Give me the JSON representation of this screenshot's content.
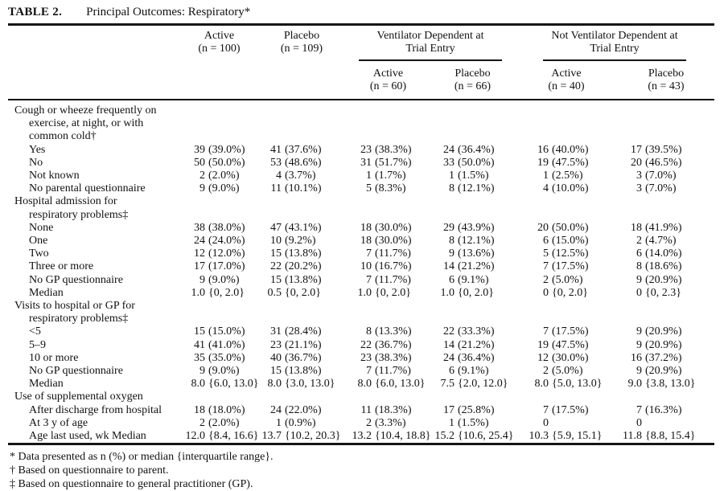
{
  "title": {
    "label": "TABLE 2.",
    "text": "Principal Outcomes: Respiratory*"
  },
  "header": {
    "main_columns": [
      {
        "name": "Active",
        "n": "(n = 100)"
      },
      {
        "name": "Placebo",
        "n": "(n = 109)"
      }
    ],
    "groups": [
      {
        "title_line1": "Ventilator Dependent at",
        "title_line2": "Trial Entry",
        "columns": [
          {
            "name": "Active",
            "n": "(n = 60)"
          },
          {
            "name": "Placebo",
            "n": "(n = 66)"
          }
        ]
      },
      {
        "title_line1": "Not Ventilator Dependent at",
        "title_line2": "Trial Entry",
        "columns": [
          {
            "name": "Active",
            "n": "(n = 40)"
          },
          {
            "name": "Placebo",
            "n": "(n = 43)"
          }
        ]
      }
    ]
  },
  "sections": [
    {
      "label_lines": [
        "Cough or wheeze frequently on",
        "exercise, at night, or with",
        "common cold†"
      ],
      "rows": [
        {
          "label": "Yes",
          "values": [
            "39 (39.0%)",
            "41 (37.6%)",
            "23 (38.3%)",
            "24 (36.4%)",
            "16 (40.0%)",
            "17 (39.5%)"
          ]
        },
        {
          "label": "No",
          "values": [
            "50 (50.0%)",
            "53 (48.6%)",
            "31 (51.7%)",
            "33 (50.0%)",
            "19 (47.5%)",
            "20 (46.5%)"
          ]
        },
        {
          "label": "Not known",
          "values": [
            "2 (2.0%)",
            "4 (3.7%)",
            "1 (1.7%)",
            "1 (1.5%)",
            "1 (2.5%)",
            "3 (7.0%)"
          ]
        },
        {
          "label": "No parental questionnaire",
          "values": [
            "9 (9.0%)",
            "11 (10.1%)",
            "5 (8.3%)",
            "8 (12.1%)",
            "4 (10.0%)",
            "3 (7.0%)"
          ]
        }
      ]
    },
    {
      "label_lines": [
        "Hospital admission for",
        "respiratory problems‡"
      ],
      "rows": [
        {
          "label": "None",
          "values": [
            "38 (38.0%)",
            "47 (43.1%)",
            "18 (30.0%)",
            "29 (43.9%)",
            "20 (50.0%)",
            "18 (41.9%)"
          ]
        },
        {
          "label": "One",
          "values": [
            "24 (24.0%)",
            "10 (9.2%)",
            "18 (30.0%)",
            "8 (12.1%)",
            "6 (15.0%)",
            "2 (4.7%)"
          ]
        },
        {
          "label": "Two",
          "values": [
            "12 (12.0%)",
            "15 (13.8%)",
            "7 (11.7%)",
            "9 (13.6%)",
            "5 (12.5%)",
            "6 (14.0%)"
          ]
        },
        {
          "label": "Three or more",
          "values": [
            "17 (17.0%)",
            "22 (20.2%)",
            "10 (16.7%)",
            "14 (21.2%)",
            "7 (17.5%)",
            "8 (18.6%)"
          ]
        },
        {
          "label": "No GP questionnaire",
          "values": [
            "9 (9.0%)",
            "15 (13.8%)",
            "7 (11.7%)",
            "6 (9.1%)",
            "2 (5.0%)",
            "9 (20.9%)"
          ]
        },
        {
          "label": "Median",
          "values": [
            "1.0 {0, 2.0}",
            "0.5 {0, 2.0}",
            "1.0 {0, 2.0}",
            "1.0 {0, 2.0}",
            "0 {0, 2.0}",
            "0 {0, 2.3}"
          ]
        }
      ]
    },
    {
      "label_lines": [
        "Visits to hospital or GP for",
        "respiratory problems‡"
      ],
      "rows": [
        {
          "label": "<5",
          "values": [
            "15 (15.0%)",
            "31 (28.4%)",
            "8 (13.3%)",
            "22 (33.3%)",
            "7 (17.5%)",
            "9 (20.9%)"
          ]
        },
        {
          "label": "5–9",
          "values": [
            "41 (41.0%)",
            "23 (21.1%)",
            "22 (36.7%)",
            "14 (21.2%)",
            "19 (47.5%)",
            "9 (20.9%)"
          ]
        },
        {
          "label": "10 or more",
          "values": [
            "35 (35.0%)",
            "40 (36.7%)",
            "23 (38.3%)",
            "24 (36.4%)",
            "12 (30.0%)",
            "16 (37.2%)"
          ]
        },
        {
          "label": "No GP questionnaire",
          "values": [
            "9 (9.0%)",
            "15 (13.8%)",
            "7 (11.7%)",
            "6 (9.1%)",
            "2 (5.0%)",
            "9 (20.9%)"
          ]
        },
        {
          "label": "Median",
          "values": [
            "8.0 {6.0, 13.0}",
            "8.0 {3.0, 13.0}",
            "8.0 {6.0, 13.0}",
            "7.5 {2.0, 12.0}",
            "8.0 {5.0, 13.0}",
            "9.0 {3.8, 13.0}"
          ]
        }
      ]
    },
    {
      "label_lines": [
        "Use of supplemental oxygen"
      ],
      "rows": [
        {
          "label": "After discharge from hospital",
          "values": [
            "18 (18.0%)",
            "24 (22.0%)",
            "11 (18.3%)",
            "17 (25.8%)",
            "7 (17.5%)",
            "7 (16.3%)"
          ]
        },
        {
          "label": "At 3 y of age",
          "values": [
            "2 (2.0%)",
            "1 (0.9%)",
            "2 (3.3%)",
            "1 (1.5%)",
            "0",
            "0"
          ]
        },
        {
          "label": "Age last used, wk Median",
          "values": [
            "12.0 {8.4, 16.6}",
            "13.7 {10.2, 20.3}",
            "13.2 {10.4, 18.8}",
            "15.2 {10.6, 25.4}",
            "10.3 {5.9, 15.1}",
            "11.8 {8.8, 15.4}"
          ]
        }
      ]
    }
  ],
  "footnotes": [
    "* Data presented as n (%) or median {interquartile range}.",
    "† Based on questionnaire to parent.",
    "‡ Based on questionnaire to general practitioner (GP)."
  ]
}
